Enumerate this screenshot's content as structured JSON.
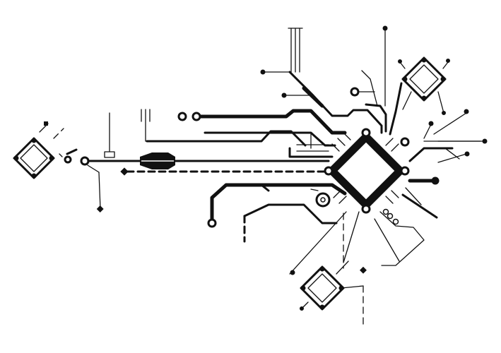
{
  "diagram": {
    "subject": "circuit-board-illustration",
    "colors": {
      "ink": "#111111",
      "background": "#ffffff"
    },
    "components": {
      "main_chip": "processor-chip",
      "small_chips": [
        "chip-left",
        "chip-top-right",
        "chip-bottom"
      ]
    }
  }
}
